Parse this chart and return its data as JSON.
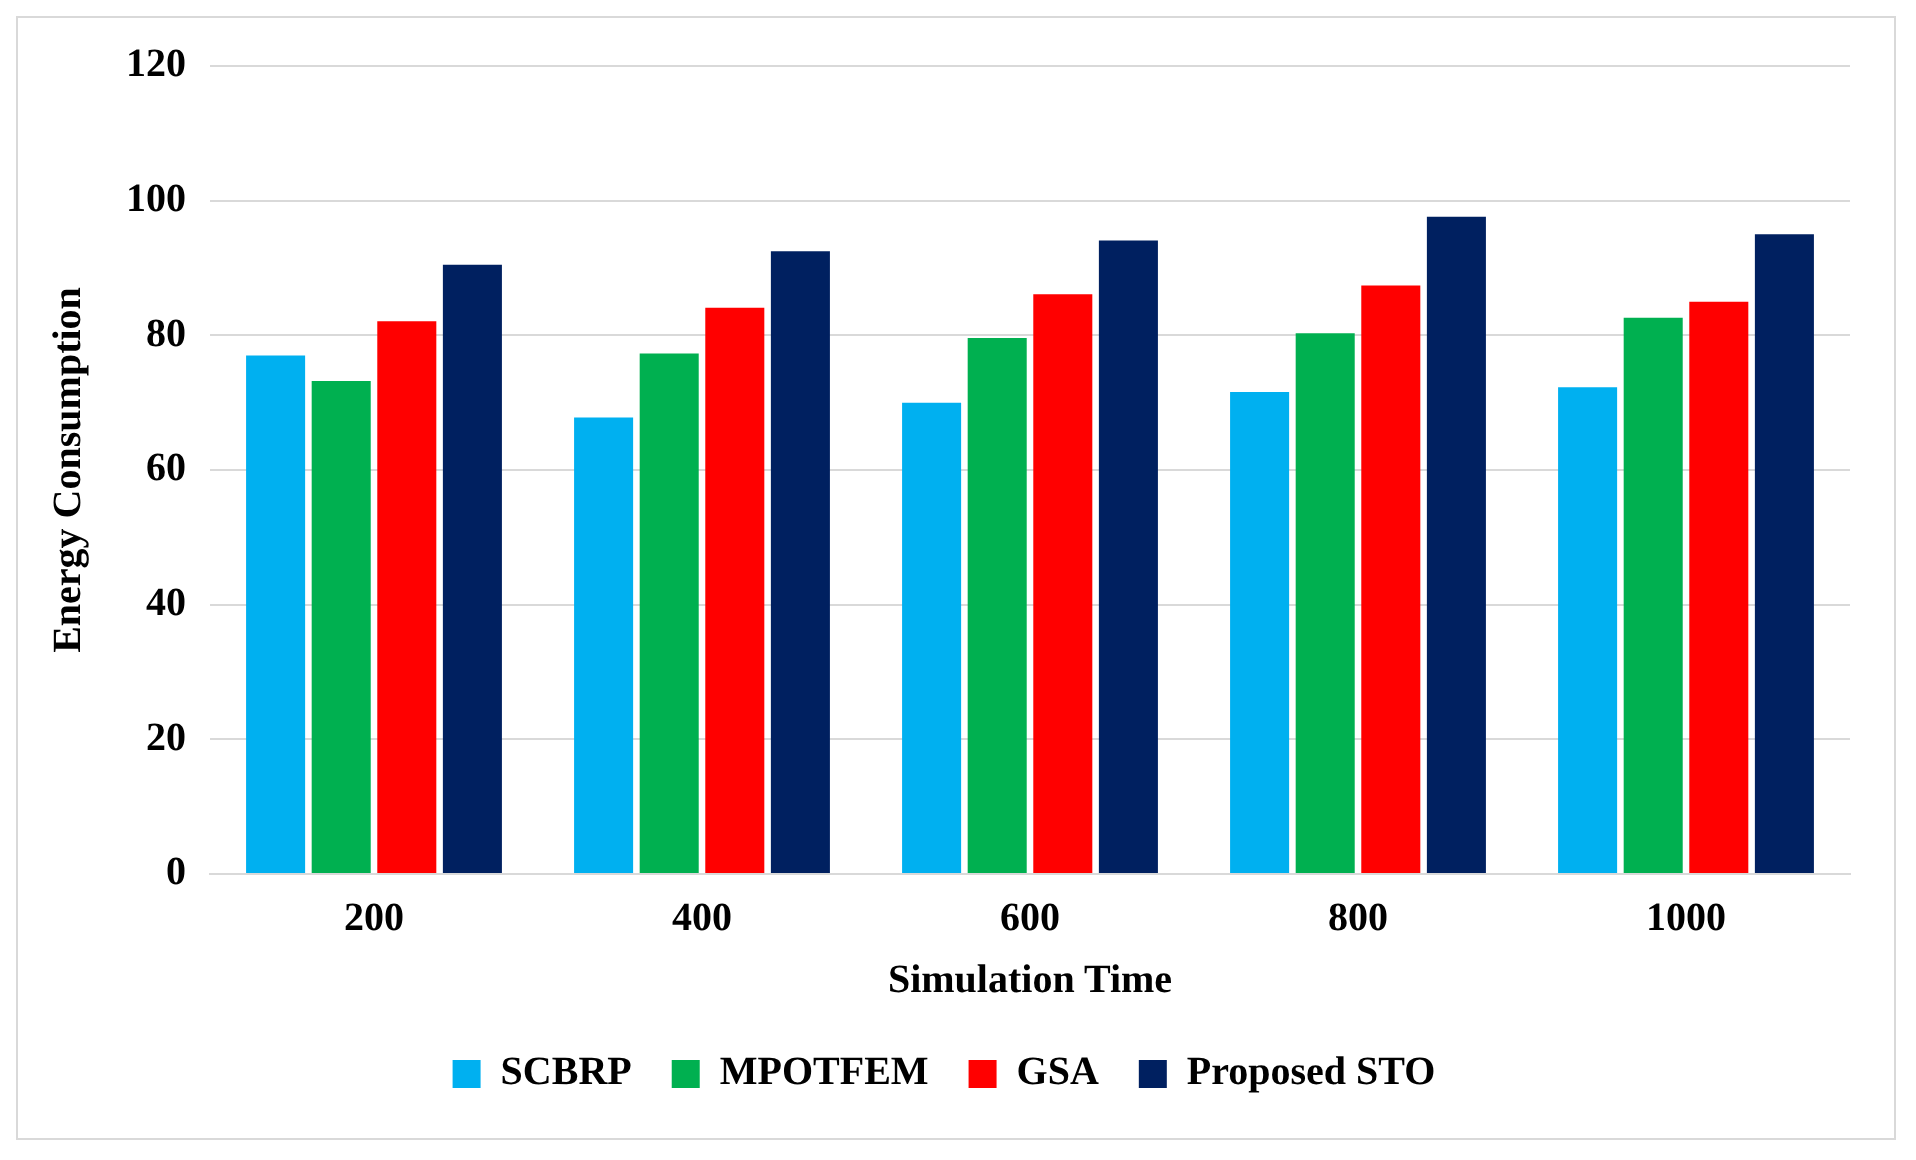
{
  "chart_data": {
    "type": "bar",
    "xlabel": "Simulation Time",
    "ylabel": "Energy Consumption",
    "categories": [
      "200",
      "400",
      "600",
      "800",
      "1000"
    ],
    "series": [
      {
        "name": "SCBRP",
        "color": "#00b0f0",
        "values": [
          77,
          67.8,
          70,
          71.6,
          72.3
        ]
      },
      {
        "name": "MPOTFEM",
        "color": "#00b050",
        "values": [
          73.2,
          77.3,
          79.6,
          80.3,
          82.6
        ]
      },
      {
        "name": "GSA",
        "color": "#ff0000",
        "values": [
          82.1,
          84.1,
          86.1,
          87.4,
          85
        ]
      },
      {
        "name": "Proposed STO",
        "color": "#002060",
        "values": [
          90.5,
          92.5,
          94.1,
          97.6,
          95
        ]
      }
    ],
    "ylim": [
      0,
      120
    ],
    "yticks": [
      0,
      20,
      40,
      60,
      80,
      100,
      120
    ],
    "grid": "y",
    "legend": "bottom"
  }
}
